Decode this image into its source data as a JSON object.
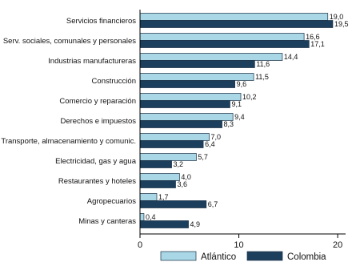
{
  "chart_data": {
    "type": "bar",
    "orientation": "horizontal",
    "categories": [
      "Servicios financieros",
      "Serv. sociales, comunales y personales",
      "Industrias manufactureras",
      "Construcción",
      "Comercio y reparación",
      "Derechos e impuestos",
      "Transporte, almacenamiento y comunic.",
      "Electricidad, gas y agua",
      "Restaurantes y hoteles",
      "Agropecuarios",
      "Minas y canteras"
    ],
    "series": [
      {
        "name": "Atlántico",
        "color": "#a9d7e6",
        "values": [
          19.0,
          16.6,
          14.4,
          11.5,
          10.2,
          9.4,
          7.0,
          5.7,
          4.0,
          1.7,
          0.4
        ],
        "labels": [
          "19,0",
          "16,6",
          "14,4",
          "11,5",
          "10,2",
          "9,4",
          "7,0",
          "5,7",
          "4,0",
          "1,7",
          "0,4"
        ]
      },
      {
        "name": "Colombia",
        "color": "#1d3f5e",
        "values": [
          19.5,
          17.1,
          11.6,
          9.6,
          9.1,
          8.3,
          6.4,
          3.2,
          3.6,
          6.7,
          4.9
        ],
        "labels": [
          "19,5",
          "17,1",
          "11,6",
          "9,6",
          "9,1",
          "8,3",
          "6,4",
          "3,2",
          "3,6",
          "6,7",
          "4,9"
        ]
      }
    ],
    "x_ticks": [
      "0",
      "10",
      "20"
    ],
    "x_tick_values": [
      0,
      10,
      20
    ],
    "xlim": [
      0,
      20.8
    ],
    "title": "",
    "xlabel": "",
    "ylabel": "",
    "grid": false,
    "legend_position": "bottom"
  }
}
